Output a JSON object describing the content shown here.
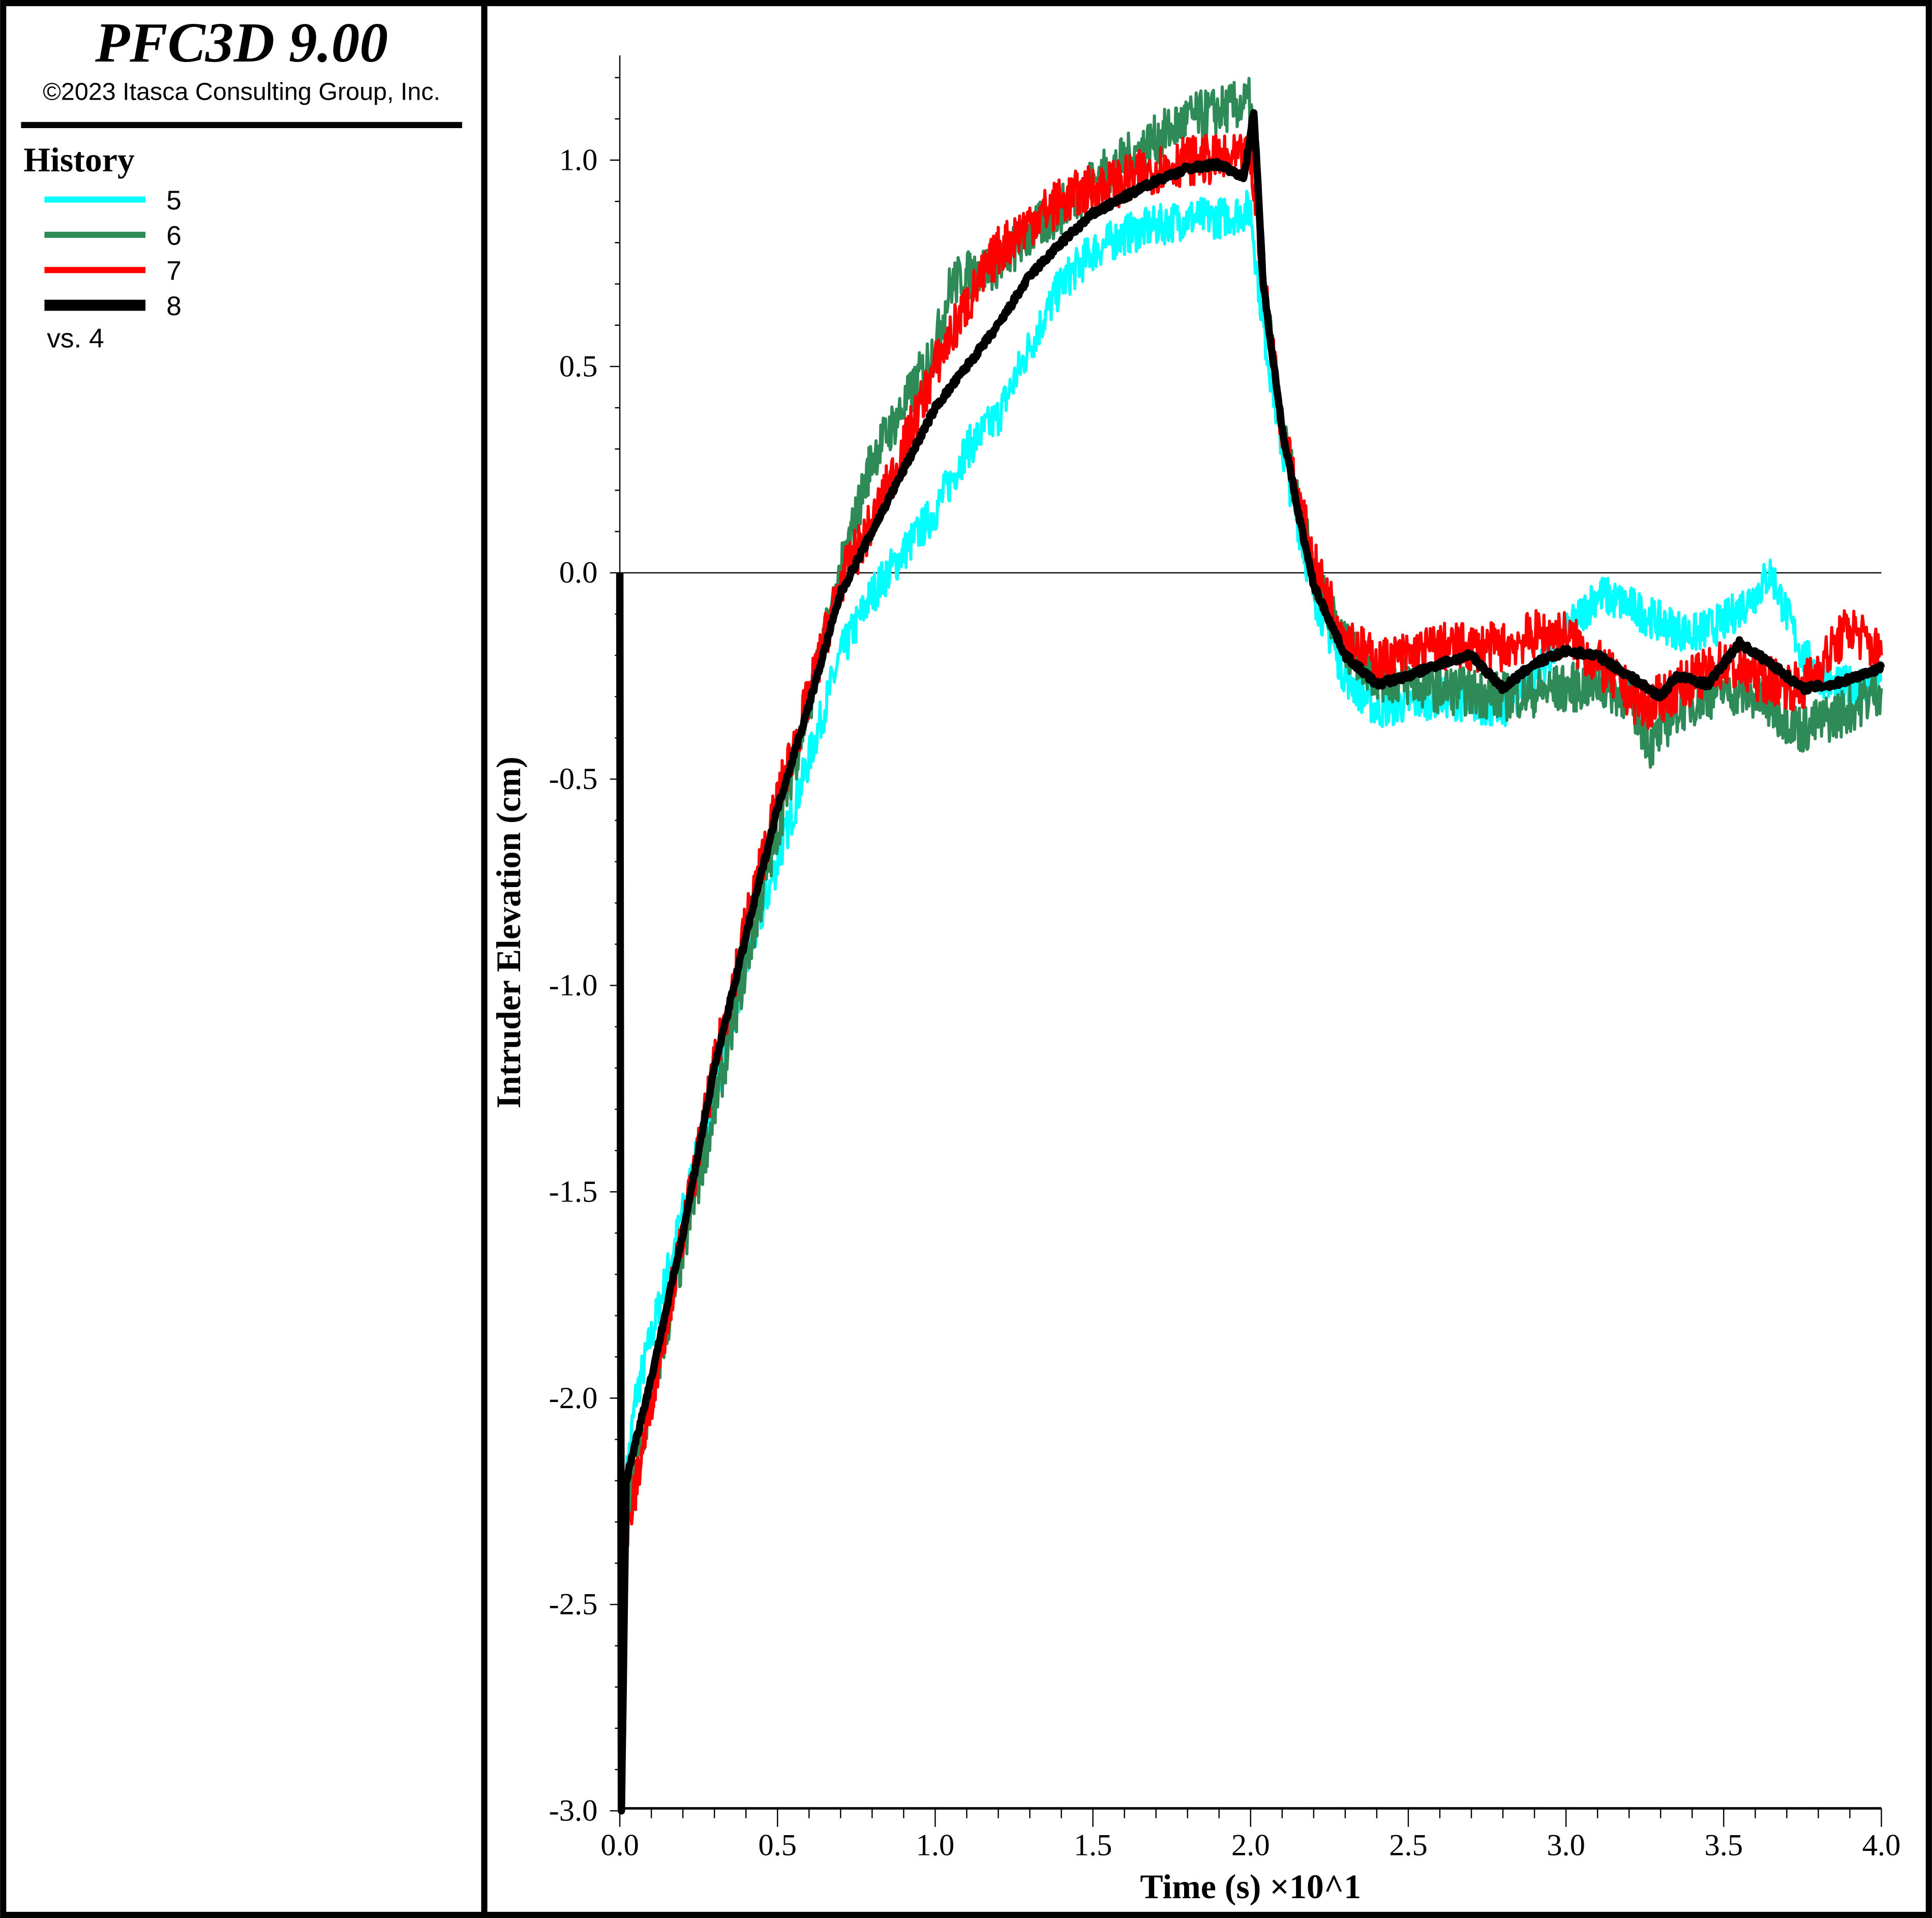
{
  "legend_panel": {
    "title": "PFC3D 9.00",
    "copyright": "©2023 Itasca Consulting Group, Inc.",
    "section": "History",
    "items": [
      {
        "label": "5",
        "color": "#00ffff"
      },
      {
        "label": "6",
        "color": "#2e8b57"
      },
      {
        "label": "7",
        "color": "#ff0000"
      },
      {
        "label": "8",
        "color": "#000000"
      }
    ],
    "vs_label": "vs. 4"
  },
  "chart_data": {
    "type": "line",
    "title": "",
    "xlabel": "Time (s) ×10^1",
    "ylabel": "Intruder Elevation (cm)",
    "xlim": [
      0,
      4
    ],
    "ylim": [
      -3,
      1.25
    ],
    "x_ticks": [
      "0.0",
      "0.5",
      "1.0",
      "1.5",
      "2.0",
      "2.5",
      "3.0",
      "3.5",
      "4.0"
    ],
    "y_ticks": [
      "1.0",
      "0.5",
      "0.0",
      "-0.5",
      "-1.0",
      "-1.5",
      "-2.0",
      "-2.5",
      "-3.0"
    ],
    "legend": "left-panel",
    "series": [
      {
        "name": "5",
        "color": "#00ffff",
        "noise": 0.05,
        "points": [
          [
            0.02,
            -2.2
          ],
          [
            0.05,
            -2.0
          ],
          [
            0.1,
            -1.85
          ],
          [
            0.2,
            -1.55
          ],
          [
            0.3,
            -1.25
          ],
          [
            0.4,
            -0.95
          ],
          [
            0.5,
            -0.7
          ],
          [
            0.6,
            -0.45
          ],
          [
            0.7,
            -0.2
          ],
          [
            0.8,
            -0.05
          ],
          [
            0.9,
            0.05
          ],
          [
            1.0,
            0.15
          ],
          [
            1.1,
            0.3
          ],
          [
            1.2,
            0.38
          ],
          [
            1.3,
            0.55
          ],
          [
            1.4,
            0.7
          ],
          [
            1.5,
            0.78
          ],
          [
            1.6,
            0.82
          ],
          [
            1.7,
            0.84
          ],
          [
            1.8,
            0.86
          ],
          [
            1.9,
            0.86
          ],
          [
            2.0,
            0.88
          ],
          [
            2.04,
            0.6
          ],
          [
            2.1,
            0.3
          ],
          [
            2.2,
            -0.05
          ],
          [
            2.3,
            -0.25
          ],
          [
            2.4,
            -0.33
          ],
          [
            2.6,
            -0.3
          ],
          [
            2.8,
            -0.33
          ],
          [
            2.9,
            -0.25
          ],
          [
            3.0,
            -0.15
          ],
          [
            3.1,
            -0.05
          ],
          [
            3.2,
            -0.08
          ],
          [
            3.3,
            -0.12
          ],
          [
            3.4,
            -0.15
          ],
          [
            3.5,
            -0.12
          ],
          [
            3.6,
            -0.05
          ],
          [
            3.65,
            0.0
          ],
          [
            3.75,
            -0.2
          ],
          [
            3.85,
            -0.28
          ],
          [
            4.0,
            -0.26
          ]
        ]
      },
      {
        "name": "6",
        "color": "#2e8b57",
        "noise": 0.06,
        "points": [
          [
            0.02,
            -2.3
          ],
          [
            0.1,
            -2.0
          ],
          [
            0.2,
            -1.65
          ],
          [
            0.3,
            -1.3
          ],
          [
            0.4,
            -0.95
          ],
          [
            0.5,
            -0.62
          ],
          [
            0.6,
            -0.32
          ],
          [
            0.7,
            0.0
          ],
          [
            0.8,
            0.28
          ],
          [
            0.9,
            0.4
          ],
          [
            1.0,
            0.55
          ],
          [
            1.05,
            0.7
          ],
          [
            1.1,
            0.72
          ],
          [
            1.2,
            0.75
          ],
          [
            1.3,
            0.82
          ],
          [
            1.4,
            0.88
          ],
          [
            1.5,
            0.95
          ],
          [
            1.6,
            1.0
          ],
          [
            1.7,
            1.05
          ],
          [
            1.8,
            1.1
          ],
          [
            1.9,
            1.12
          ],
          [
            2.0,
            1.14
          ],
          [
            2.04,
            0.7
          ],
          [
            2.1,
            0.35
          ],
          [
            2.2,
            0.0
          ],
          [
            2.3,
            -0.18
          ],
          [
            2.4,
            -0.25
          ],
          [
            2.6,
            -0.28
          ],
          [
            2.8,
            -0.3
          ],
          [
            3.0,
            -0.28
          ],
          [
            3.1,
            -0.27
          ],
          [
            3.2,
            -0.3
          ],
          [
            3.27,
            -0.42
          ],
          [
            3.35,
            -0.33
          ],
          [
            3.5,
            -0.28
          ],
          [
            3.6,
            -0.3
          ],
          [
            3.75,
            -0.38
          ],
          [
            3.9,
            -0.33
          ],
          [
            4.0,
            -0.28
          ]
        ]
      },
      {
        "name": "7",
        "color": "#ff0000",
        "noise": 0.06,
        "points": [
          [
            0.02,
            -2.35
          ],
          [
            0.1,
            -2.0
          ],
          [
            0.2,
            -1.6
          ],
          [
            0.3,
            -1.2
          ],
          [
            0.4,
            -0.85
          ],
          [
            0.5,
            -0.55
          ],
          [
            0.6,
            -0.3
          ],
          [
            0.7,
            -0.02
          ],
          [
            0.8,
            0.12
          ],
          [
            0.9,
            0.3
          ],
          [
            1.0,
            0.5
          ],
          [
            1.1,
            0.65
          ],
          [
            1.2,
            0.78
          ],
          [
            1.3,
            0.85
          ],
          [
            1.4,
            0.9
          ],
          [
            1.5,
            0.93
          ],
          [
            1.6,
            0.95
          ],
          [
            1.7,
            0.98
          ],
          [
            1.8,
            1.0
          ],
          [
            1.9,
            1.0
          ],
          [
            2.0,
            1.0
          ],
          [
            2.04,
            0.72
          ],
          [
            2.1,
            0.35
          ],
          [
            2.2,
            0.02
          ],
          [
            2.3,
            -0.15
          ],
          [
            2.4,
            -0.22
          ],
          [
            2.6,
            -0.18
          ],
          [
            2.8,
            -0.18
          ],
          [
            2.9,
            -0.15
          ],
          [
            3.0,
            -0.15
          ],
          [
            3.1,
            -0.22
          ],
          [
            3.25,
            -0.33
          ],
          [
            3.35,
            -0.28
          ],
          [
            3.5,
            -0.22
          ],
          [
            3.6,
            -0.25
          ],
          [
            3.75,
            -0.28
          ],
          [
            3.9,
            -0.13
          ],
          [
            4.0,
            -0.2
          ]
        ]
      },
      {
        "name": "8",
        "color": "#000000",
        "noise": 0.008,
        "points": [
          [
            0.0,
            0.0
          ],
          [
            0.005,
            -3.0
          ],
          [
            0.02,
            -2.2
          ],
          [
            0.1,
            -1.95
          ],
          [
            0.2,
            -1.6
          ],
          [
            0.3,
            -1.2
          ],
          [
            0.4,
            -0.88
          ],
          [
            0.5,
            -0.57
          ],
          [
            0.6,
            -0.32
          ],
          [
            0.7,
            -0.05
          ],
          [
            0.8,
            0.1
          ],
          [
            0.9,
            0.25
          ],
          [
            1.0,
            0.4
          ],
          [
            1.1,
            0.5
          ],
          [
            1.2,
            0.6
          ],
          [
            1.3,
            0.72
          ],
          [
            1.4,
            0.8
          ],
          [
            1.5,
            0.87
          ],
          [
            1.6,
            0.91
          ],
          [
            1.7,
            0.95
          ],
          [
            1.8,
            0.98
          ],
          [
            1.9,
            0.99
          ],
          [
            1.98,
            0.96
          ],
          [
            2.01,
            1.12
          ],
          [
            2.04,
            0.7
          ],
          [
            2.1,
            0.35
          ],
          [
            2.15,
            0.15
          ],
          [
            2.2,
            -0.03
          ],
          [
            2.3,
            -0.2
          ],
          [
            2.4,
            -0.27
          ],
          [
            2.5,
            -0.25
          ],
          [
            2.6,
            -0.22
          ],
          [
            2.7,
            -0.2
          ],
          [
            2.8,
            -0.28
          ],
          [
            2.9,
            -0.22
          ],
          [
            3.0,
            -0.19
          ],
          [
            3.1,
            -0.2
          ],
          [
            3.2,
            -0.25
          ],
          [
            3.3,
            -0.3
          ],
          [
            3.35,
            -0.25
          ],
          [
            3.45,
            -0.27
          ],
          [
            3.55,
            -0.17
          ],
          [
            3.65,
            -0.22
          ],
          [
            3.75,
            -0.28
          ],
          [
            3.85,
            -0.27
          ],
          [
            4.0,
            -0.23
          ]
        ]
      }
    ]
  }
}
